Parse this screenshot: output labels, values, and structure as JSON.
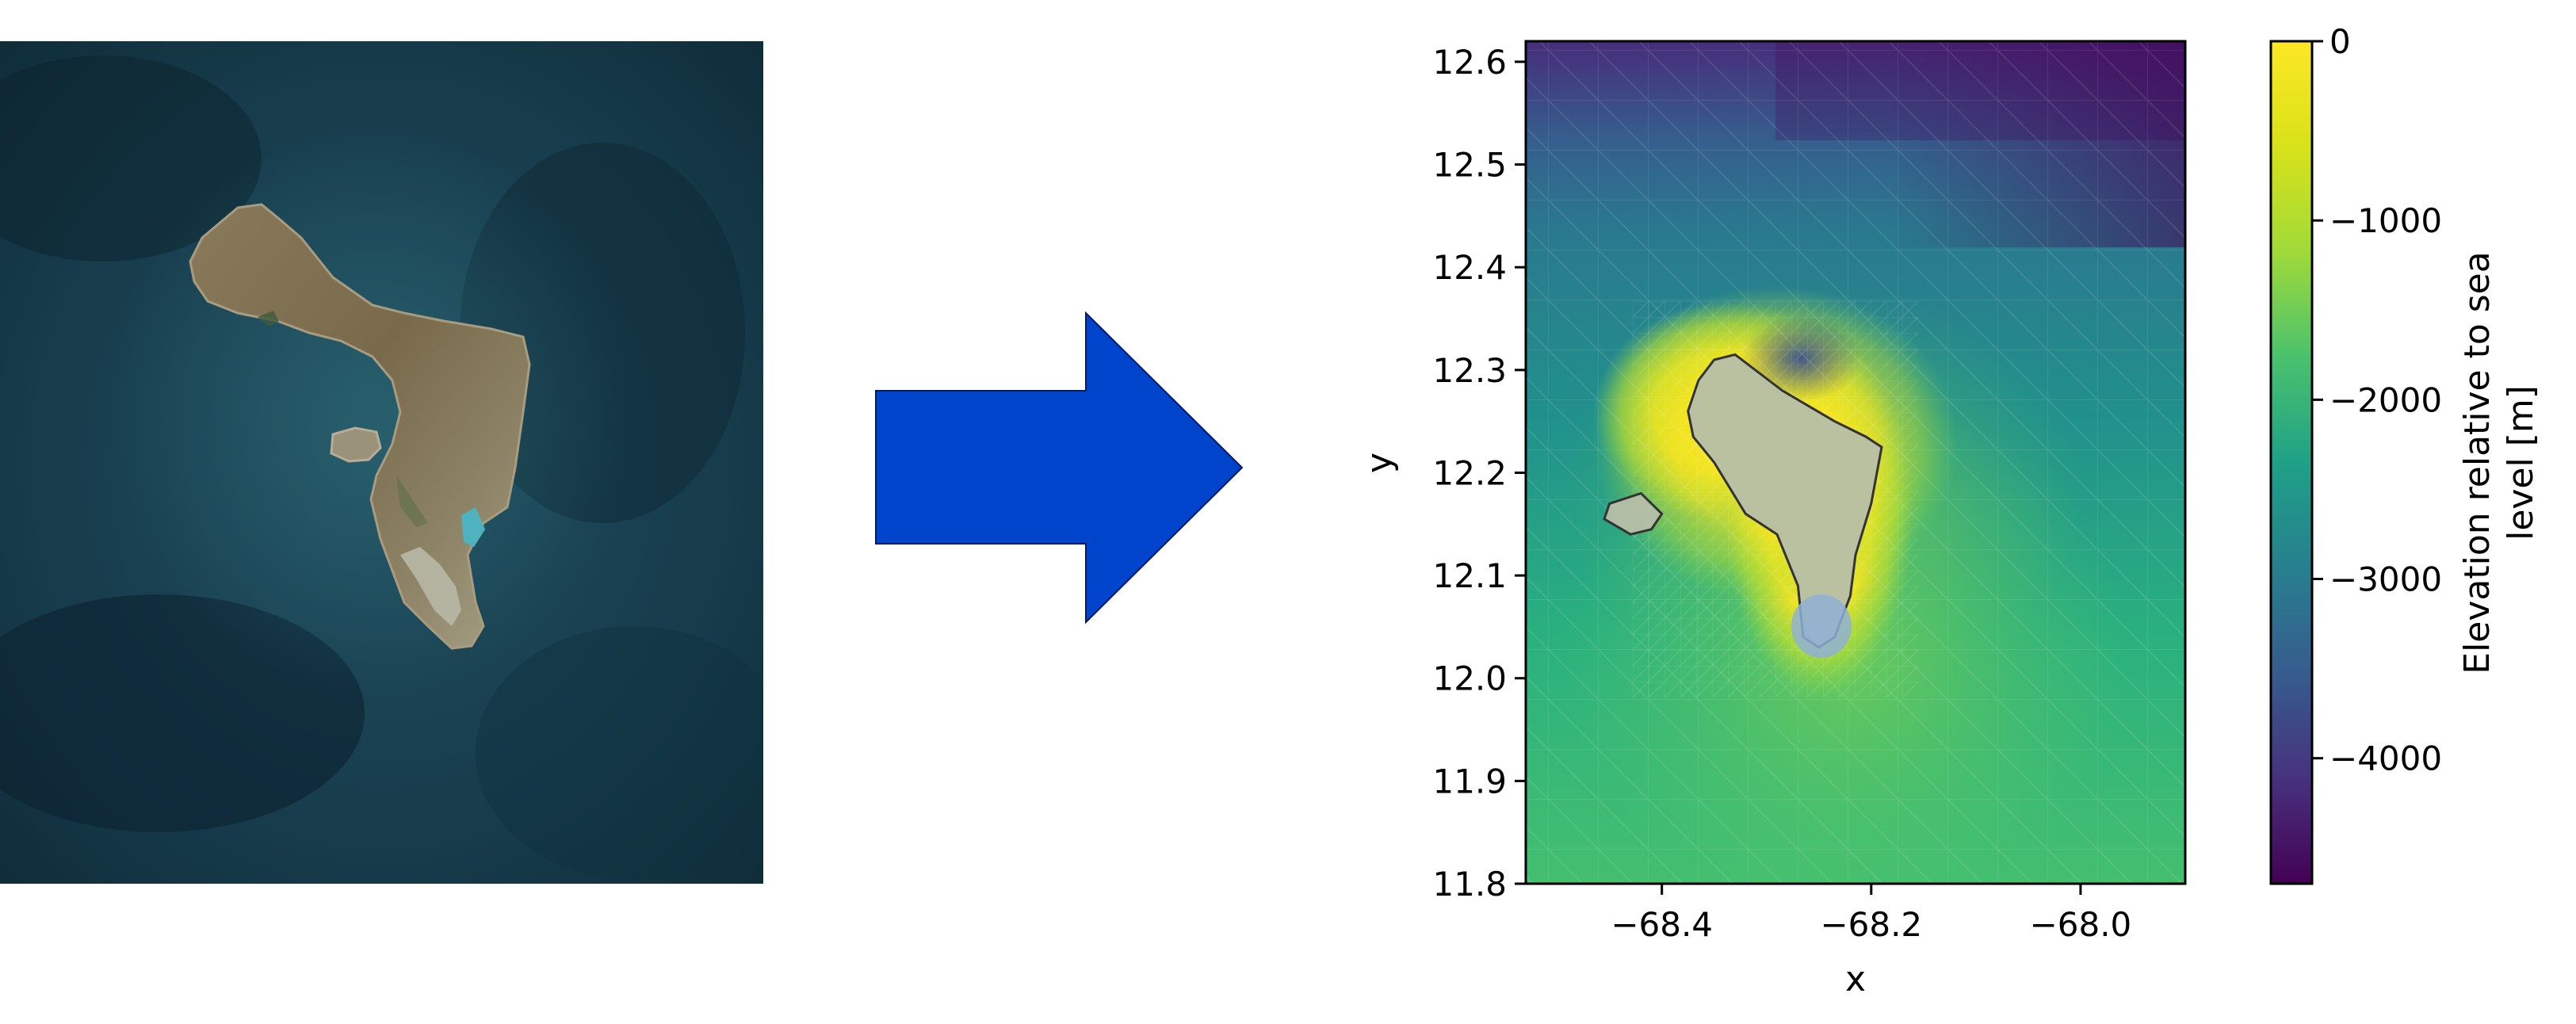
{
  "figure": {
    "satellite_panel": {
      "content": "satellite image of island surrounded by ocean"
    },
    "arrow": {
      "color": "#0044CC",
      "outline": "#001A66",
      "direction": "right"
    },
    "map_panel": {
      "xlabel": "x",
      "ylabel": "y",
      "xlim": [
        -68.53,
        -67.9
      ],
      "ylim": [
        11.8,
        12.62
      ],
      "x_ticks": [
        -68.4,
        -68.2,
        -68.0
      ],
      "x_tick_labels": [
        "−68.4",
        "−68.2",
        "−68.0"
      ],
      "y_ticks": [
        11.8,
        11.9,
        12.0,
        12.1,
        12.2,
        12.3,
        12.4,
        12.5,
        12.6
      ],
      "y_tick_labels": [
        "11.8",
        "11.9",
        "12.0",
        "12.1",
        "12.2",
        "12.3",
        "12.4",
        "12.5",
        "12.6"
      ],
      "grid": false
    },
    "colorbar": {
      "label_line1": "Elevation relative to sea",
      "label_line2": "level [m]",
      "colormap": "viridis",
      "range": [
        -4700,
        0
      ],
      "ticks": [
        0,
        -1000,
        -2000,
        -3000,
        -4000
      ],
      "tick_labels": [
        "0",
        "−1000",
        "−2000",
        "−3000",
        "−4000"
      ]
    }
  },
  "chart_data": {
    "type": "heatmap",
    "title": "",
    "xlabel": "x",
    "ylabel": "y",
    "xlim": [
      -68.53,
      -67.9
    ],
    "ylim": [
      11.8,
      12.62
    ],
    "colorbar_label": "Elevation relative to sea level [m]",
    "color_range": [
      -4700,
      0
    ],
    "island_outline": {
      "x": [
        -68.33,
        -68.285,
        -68.26,
        -68.235,
        -68.205,
        -68.19,
        -68.2,
        -68.215,
        -68.22,
        -68.235,
        -68.25,
        -68.265,
        -68.27,
        -68.29,
        -68.32,
        -68.35,
        -68.37,
        -68.375,
        -68.365,
        -68.35
      ],
      "y": [
        12.315,
        12.28,
        12.265,
        12.25,
        12.235,
        12.225,
        12.17,
        12.12,
        12.08,
        12.04,
        12.03,
        12.04,
        12.09,
        12.14,
        12.16,
        12.21,
        12.235,
        12.26,
        12.29,
        12.31
      ]
    },
    "klein_bonaire_outline": {
      "x": [
        -68.45,
        -68.42,
        -68.4,
        -68.41,
        -68.43,
        -68.455
      ],
      "y": [
        12.17,
        12.18,
        12.16,
        12.145,
        12.14,
        12.155
      ]
    }
  }
}
